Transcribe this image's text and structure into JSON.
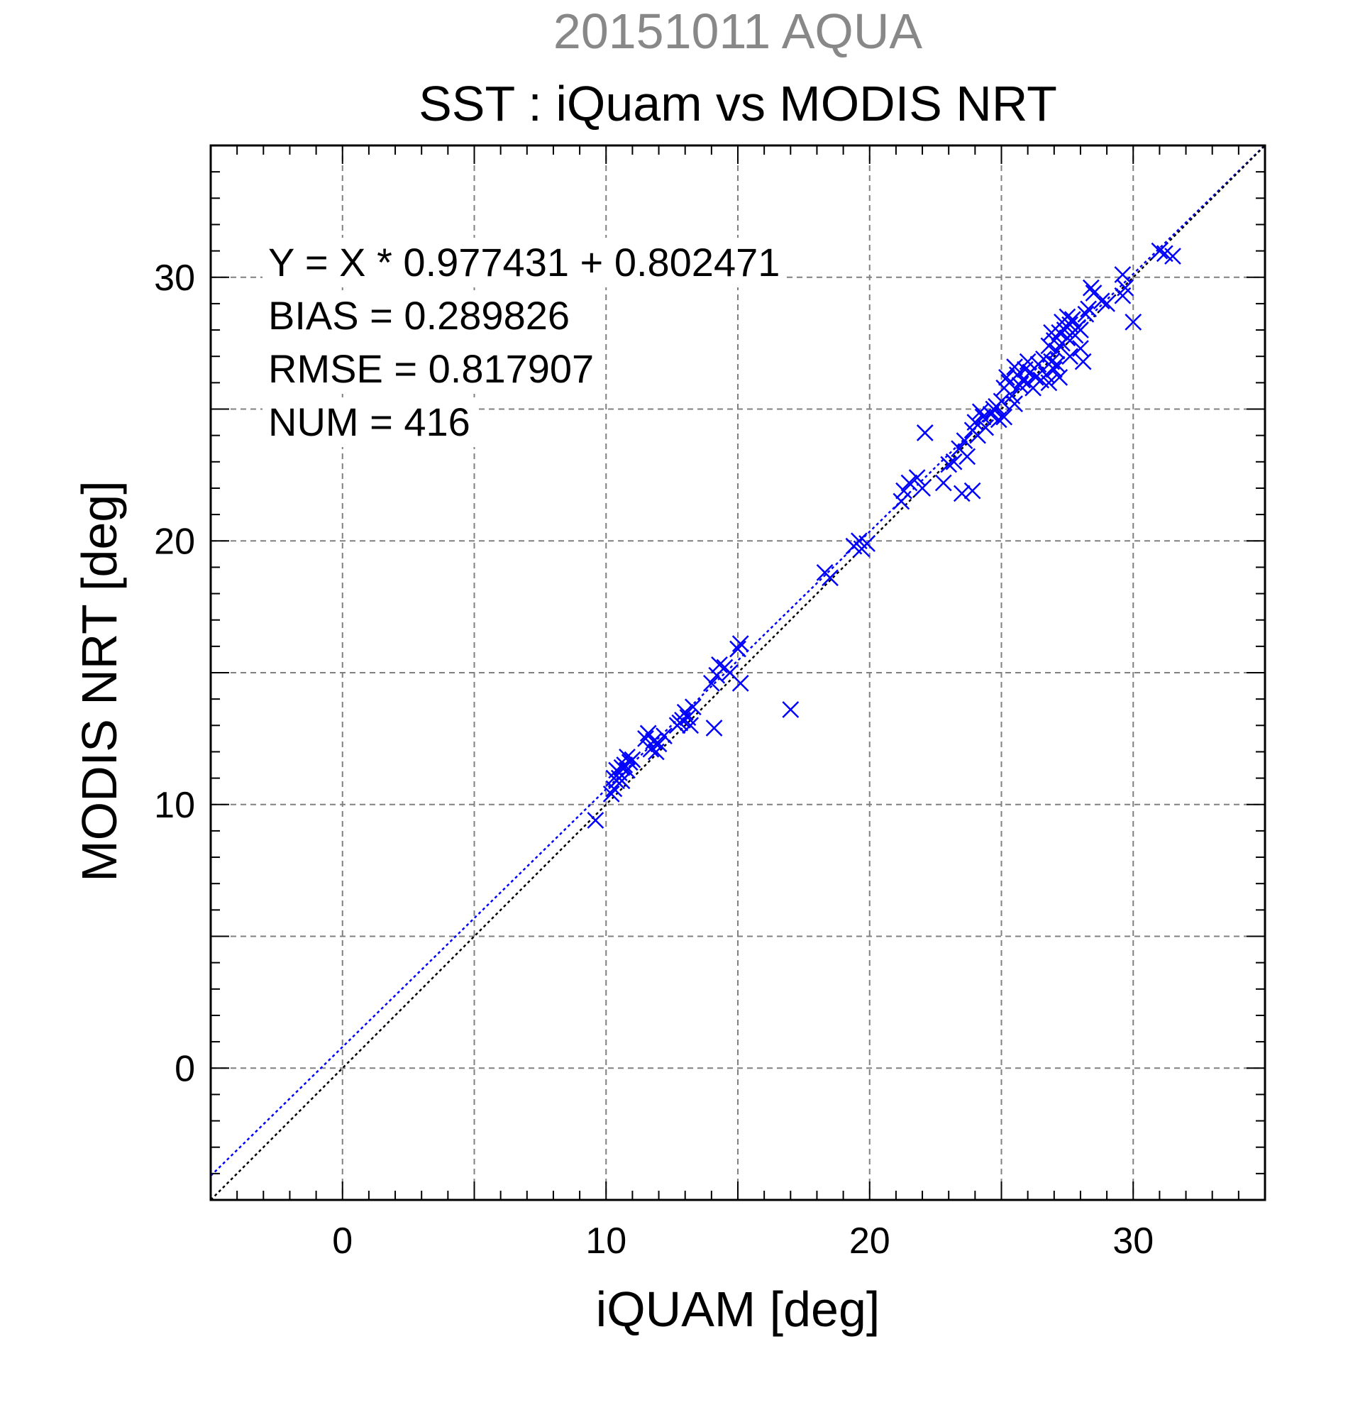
{
  "header": {
    "date_title": "20151011 AQUA",
    "main_title": "SST : iQuam vs MODIS NRT"
  },
  "annotations": {
    "regression": "Y = X * 0.977431 + 0.802471",
    "bias": "BIAS = 0.289826",
    "rmse": "RMSE = 0.817907",
    "num": "NUM = 416"
  },
  "colors": {
    "points": "#0000ff",
    "fit_line": "#0000ff",
    "identity_line": "#000000",
    "grid": "#808080",
    "date_title": "#888888"
  },
  "chart_data": {
    "type": "scatter",
    "title": "SST : iQuam vs MODIS NRT",
    "subtitle": "20151011 AQUA",
    "xlabel": "iQUAM [deg]",
    "ylabel": "MODIS NRT [deg]",
    "xlim": [
      -5,
      35
    ],
    "ylim": [
      -5,
      35
    ],
    "x_ticks": [
      0,
      10,
      20,
      30
    ],
    "y_ticks": [
      0,
      10,
      20,
      30
    ],
    "grid": true,
    "grid_step": 5,
    "marker": "x",
    "lines": [
      {
        "kind": "regression",
        "slope": 0.977431,
        "intercept": 0.802471,
        "style": "dotted",
        "color": "#0000ff"
      },
      {
        "kind": "identity",
        "slope": 1,
        "intercept": 0,
        "style": "dotted",
        "color": "#000000"
      }
    ],
    "points": [
      [
        9.6,
        9.4
      ],
      [
        10.2,
        10.4
      ],
      [
        10.3,
        10.6
      ],
      [
        10.4,
        10.9
      ],
      [
        10.5,
        11.2
      ],
      [
        10.6,
        11.4
      ],
      [
        10.5,
        11.0
      ],
      [
        10.7,
        11.5
      ],
      [
        10.8,
        11.8
      ],
      [
        10.9,
        11.6
      ],
      [
        10.4,
        11.3
      ],
      [
        10.6,
        10.9
      ],
      [
        11.0,
        11.7
      ],
      [
        10.3,
        11.0
      ],
      [
        10.8,
        11.3
      ],
      [
        11.7,
        12.1
      ],
      [
        11.8,
        12.4
      ],
      [
        11.6,
        12.7
      ],
      [
        11.5,
        12.5
      ],
      [
        12.0,
        12.3
      ],
      [
        12.2,
        12.6
      ],
      [
        11.9,
        12.0
      ],
      [
        12.7,
        13.0
      ],
      [
        12.9,
        13.2
      ],
      [
        13.0,
        13.5
      ],
      [
        13.1,
        13.3
      ],
      [
        13.3,
        13.7
      ],
      [
        12.8,
        13.1
      ],
      [
        13.2,
        13.0
      ],
      [
        14.0,
        14.6
      ],
      [
        14.2,
        14.9
      ],
      [
        14.3,
        15.3
      ],
      [
        14.5,
        15.2
      ],
      [
        14.7,
        15.0
      ],
      [
        14.1,
        12.9
      ],
      [
        15.0,
        15.9
      ],
      [
        15.1,
        16.1
      ],
      [
        15.1,
        14.6
      ],
      [
        17.0,
        13.6
      ],
      [
        18.3,
        18.8
      ],
      [
        18.5,
        18.6
      ],
      [
        19.4,
        19.8
      ],
      [
        19.6,
        20.0
      ],
      [
        19.7,
        19.7
      ],
      [
        19.9,
        19.9
      ],
      [
        21.2,
        21.5
      ],
      [
        21.3,
        21.9
      ],
      [
        21.5,
        22.2
      ],
      [
        21.8,
        22.4
      ],
      [
        22.0,
        22.0
      ],
      [
        22.1,
        24.1
      ],
      [
        22.8,
        22.2
      ],
      [
        23.0,
        22.9
      ],
      [
        23.2,
        23.0
      ],
      [
        23.5,
        21.8
      ],
      [
        23.9,
        21.9
      ],
      [
        23.4,
        23.5
      ],
      [
        23.6,
        23.8
      ],
      [
        23.7,
        23.2
      ],
      [
        23.9,
        24.2
      ],
      [
        24.0,
        24.5
      ],
      [
        24.1,
        24.0
      ],
      [
        24.3,
        24.7
      ],
      [
        24.4,
        24.3
      ],
      [
        24.6,
        24.8
      ],
      [
        24.7,
        25.0
      ],
      [
        24.9,
        24.6
      ],
      [
        25.0,
        25.3
      ],
      [
        25.1,
        25.8
      ],
      [
        25.2,
        26.2
      ],
      [
        25.3,
        26.0
      ],
      [
        25.4,
        25.5
      ],
      [
        25.5,
        25.2
      ],
      [
        25.6,
        26.3
      ],
      [
        25.7,
        25.9
      ],
      [
        25.8,
        26.1
      ],
      [
        25.9,
        26.5
      ],
      [
        26.0,
        26.0
      ],
      [
        26.1,
        26.4
      ],
      [
        26.2,
        25.8
      ],
      [
        26.3,
        26.2
      ],
      [
        26.4,
        26.7
      ],
      [
        26.5,
        26.1
      ],
      [
        26.6,
        26.9
      ],
      [
        26.7,
        26.3
      ],
      [
        26.8,
        27.4
      ],
      [
        26.9,
        26.8
      ],
      [
        27.0,
        27.6
      ],
      [
        27.1,
        27.2
      ],
      [
        27.2,
        27.9
      ],
      [
        27.3,
        27.5
      ],
      [
        27.4,
        28.0
      ],
      [
        27.5,
        27.7
      ],
      [
        27.6,
        28.2
      ],
      [
        27.7,
        28.4
      ],
      [
        27.8,
        27.8
      ],
      [
        27.9,
        28.1
      ],
      [
        28.0,
        27.3
      ],
      [
        28.1,
        26.8
      ],
      [
        28.2,
        28.6
      ],
      [
        28.3,
        28.8
      ],
      [
        28.4,
        29.6
      ],
      [
        28.5,
        29.4
      ],
      [
        28.8,
        29.1
      ],
      [
        29.0,
        29.0
      ],
      [
        29.6,
        30.1
      ],
      [
        29.7,
        29.6
      ],
      [
        29.6,
        29.3
      ],
      [
        30.0,
        28.3
      ],
      [
        31.0,
        31.0
      ],
      [
        31.2,
        30.9
      ],
      [
        31.5,
        30.8
      ],
      [
        27.2,
        26.2
      ],
      [
        27.0,
        26.5
      ],
      [
        26.8,
        26.0
      ],
      [
        27.6,
        27.0
      ],
      [
        26.9,
        27.9
      ],
      [
        27.3,
        28.3
      ],
      [
        27.1,
        26.7
      ],
      [
        25.5,
        26.6
      ],
      [
        24.8,
        25.1
      ],
      [
        24.2,
        24.9
      ],
      [
        26.0,
        26.8
      ],
      [
        27.5,
        28.5
      ],
      [
        28.0,
        28.0
      ],
      [
        25.1,
        24.7
      ]
    ]
  }
}
